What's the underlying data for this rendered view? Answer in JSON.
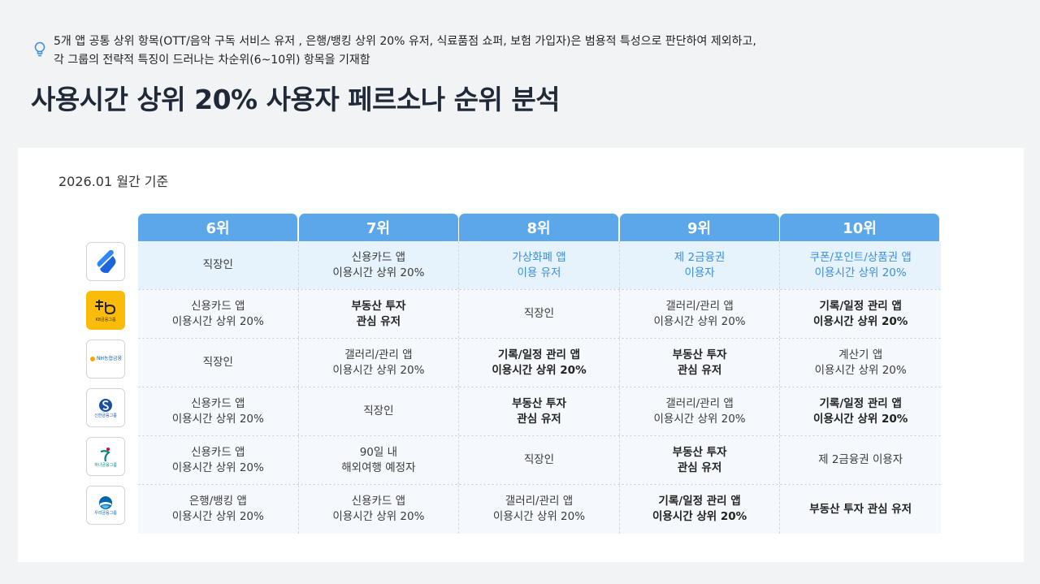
{
  "note": {
    "line1": "5개 앱 공통 상위 항목(OTT/음악 구독 서비스 유저 , 은행/뱅킹 상위 20% 유저, 식료품점 쇼퍼, 보험 가입자)은 범용적 특성으로 판단하여 제외하고,",
    "line2": "각 그룹의 전략적 특징이 드러나는 차순위(6~10위) 항목을 기재함"
  },
  "title": "사용시간 상위 20% 사용자 페르소나 순위 분석",
  "period": "2026.01 월간 기준",
  "headers": [
    "6위",
    "7위",
    "8위",
    "9위",
    "10위"
  ],
  "logos": [
    {
      "name": "toss-logo",
      "text": ""
    },
    {
      "name": "kb-logo",
      "text": "KB금융그룹"
    },
    {
      "name": "nh-logo",
      "text": "NH농협금융"
    },
    {
      "name": "shinhan-logo",
      "text": "신한금융그룹"
    },
    {
      "name": "hana-logo",
      "text": "하나금융그룹"
    },
    {
      "name": "woori-logo",
      "text": "우리금융그룹"
    }
  ],
  "rows": [
    [
      {
        "l1": "직장인",
        "l2": ""
      },
      {
        "l1": "신용카드 앱",
        "l2": "이용시간 상위 20%"
      },
      {
        "l1": "가상화폐 앱",
        "l2": "이용 유저"
      },
      {
        "l1": "제 2금융권",
        "l2": "이용자"
      },
      {
        "l1": "쿠폰/포인트/상품권 앱",
        "l2": "이용시간 상위 20%"
      }
    ],
    [
      {
        "l1": "신용카드 앱",
        "l2": "이용시간 상위 20%"
      },
      {
        "l1": "부동산 투자",
        "l2": "관심 유저"
      },
      {
        "l1": "직장인",
        "l2": ""
      },
      {
        "l1": "갤러리/관리 앱",
        "l2": "이용시간 상위 20%"
      },
      {
        "l1": "기록/일정 관리 앱",
        "l2": "이용시간 상위 20%"
      }
    ],
    [
      {
        "l1": "직장인",
        "l2": ""
      },
      {
        "l1": "갤러리/관리 앱",
        "l2": "이용시간 상위 20%"
      },
      {
        "l1": "기록/일정 관리 앱",
        "l2": "이용시간 상위 20%"
      },
      {
        "l1": "부동산 투자",
        "l2": "관심 유저"
      },
      {
        "l1": "계산기 앱",
        "l2": "이용시간 상위 20%"
      }
    ],
    [
      {
        "l1": "신용카드 앱",
        "l2": "이용시간 상위 20%"
      },
      {
        "l1": "직장인",
        "l2": ""
      },
      {
        "l1": "부동산 투자",
        "l2": "관심 유저"
      },
      {
        "l1": "갤러리/관리 앱",
        "l2": "이용시간 상위 20%"
      },
      {
        "l1": "기록/일정 관리 앱",
        "l2": "이용시간 상위 20%"
      }
    ],
    [
      {
        "l1": "신용카드 앱",
        "l2": "이용시간 상위 20%"
      },
      {
        "l1": "90일 내",
        "l2": "해외여행 예정자"
      },
      {
        "l1": "직장인",
        "l2": ""
      },
      {
        "l1": "부동산 투자",
        "l2": "관심 유저"
      },
      {
        "l1": "제 2금융권 이용자",
        "l2": ""
      }
    ],
    [
      {
        "l1": "은행/뱅킹 앱",
        "l2": "이용시간 상위 20%"
      },
      {
        "l1": "신용카드 앱",
        "l2": "이용시간 상위 20%"
      },
      {
        "l1": "갤러리/관리 앱",
        "l2": "이용시간 상위 20%"
      },
      {
        "l1": "기록/일정 관리 앱",
        "l2": "이용시간 상위 20%"
      },
      {
        "l1": "부동산 투자 관심 유저",
        "l2": ""
      }
    ]
  ],
  "colors": {
    "header": "#5ba7ea",
    "highlight": "#3a8fdc",
    "first_row_bg": "#e6f2fc"
  }
}
